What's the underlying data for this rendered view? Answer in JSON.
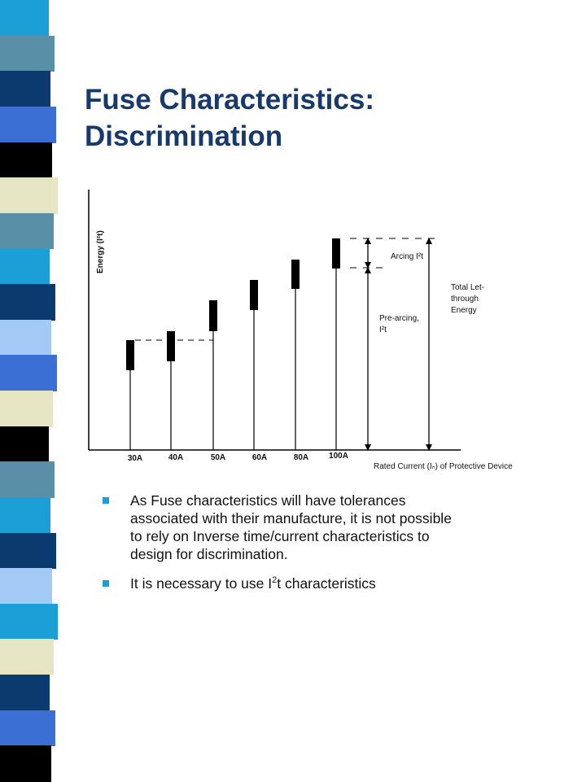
{
  "slide": {
    "title_line1": "Fuse Characteristics:",
    "title_line2": "Discrimination"
  },
  "colors": {
    "title": "#17396b",
    "bullet": "#1c9fd6",
    "stripe": [
      "#1c9fd6",
      "#5a8fa8",
      "#0b3a6e",
      "#3b6fd4",
      "#000000",
      "#e6e6c4",
      "#5a8fa8",
      "#1c9fd6",
      "#0b3a6e",
      "#a3c9f5",
      "#3b6fd4",
      "#e6e6c4",
      "#000000",
      "#5a8fa8",
      "#1c9fd6",
      "#0b3a6e",
      "#a3c9f5",
      "#1c9fd6",
      "#e6e6c4",
      "#0b3a6e",
      "#3b6fd4",
      "#000000"
    ]
  },
  "diagram": {
    "y_axis_label": "Energy (I²t)",
    "x_axis_label": "Rated Current (Iₙ) of Protective Device",
    "ratings": [
      "30A",
      "40A",
      "50A",
      "60A",
      "80A",
      "100A"
    ],
    "arcing_label": "Arcing I²t",
    "pre_arcing_label_line1": "Pre-arcing,",
    "pre_arcing_label_line2": "I²t",
    "total_label_line1": "Total Let-",
    "total_label_line2": "through",
    "total_label_line3": "Energy"
  },
  "bullets": [
    {
      "text": "As Fuse characteristics will have tolerances associated with their manufacture, it is not possible to rely on Inverse time/current characteristics to design for discrimination."
    },
    {
      "pre": "It is necessary to use I",
      "sup": "2",
      "post": "t  characteristics"
    }
  ]
}
